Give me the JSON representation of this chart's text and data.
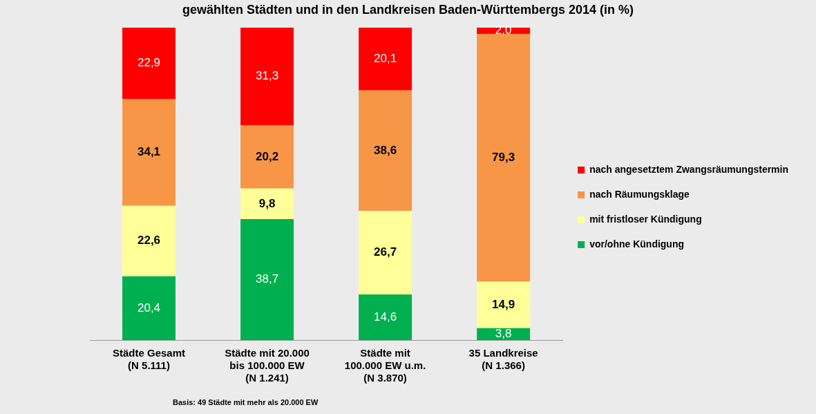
{
  "chart_data": {
    "type": "bar",
    "stacked": true,
    "title": "gewählten Städten und in den Landkreisen Baden-Württembergs 2014 (in %)",
    "categories": [
      "Städte Gesamt\n(N 5.111)",
      "Städte mit 20.000\nbis 100.000 EW\n(N 1.241)",
      "Städte mit\n100.000 EW u.m.\n(N 3.870)",
      "35 Landkreise\n(N 1.366)"
    ],
    "series": [
      {
        "name": "vor/ohne Kündigung",
        "color": "#00b050",
        "values": [
          20.4,
          38.7,
          14.6,
          3.8
        ],
        "value_labels": [
          "20,4",
          "38,7",
          "14,6",
          "3,8"
        ]
      },
      {
        "name": "mit fristloser Kündigung",
        "color": "#ffff99",
        "values": [
          22.6,
          9.8,
          26.7,
          14.9
        ],
        "value_labels": [
          "22,6",
          "9,8",
          "26,7",
          "14,9"
        ]
      },
      {
        "name": "nach Räumungsklage",
        "color": "#f79646",
        "values": [
          34.1,
          20.2,
          38.6,
          79.3
        ],
        "value_labels": [
          "34,1",
          "20,2",
          "38,6",
          "79,3"
        ]
      },
      {
        "name": "nach angesetztem Zwangsräumungstermin",
        "color": "#ff0000",
        "values": [
          22.9,
          31.3,
          20.1,
          2.0
        ],
        "value_labels": [
          "22,9",
          "31,3",
          "20,1",
          "2,0"
        ]
      }
    ],
    "ylim": [
      0,
      100
    ],
    "grid": false,
    "legend": "right",
    "tick_labels": "x",
    "annotations": [
      "Basis: 49 Städte mit mehr als 20.000 EW"
    ]
  }
}
